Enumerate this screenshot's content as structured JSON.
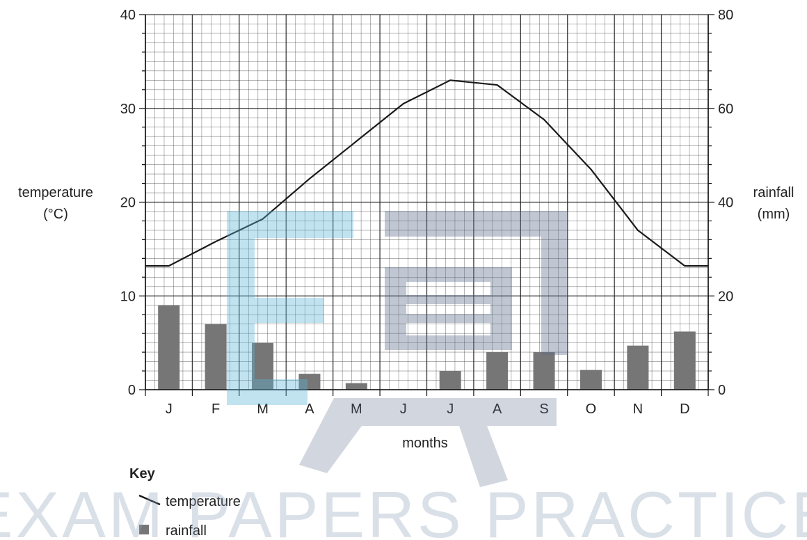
{
  "chart_data": {
    "type": "bar+line",
    "xlabel": "months",
    "categories": [
      "J",
      "F",
      "M",
      "A",
      "M",
      "J",
      "J",
      "A",
      "S",
      "O",
      "N",
      "D"
    ],
    "y_left": {
      "label_line1": "temperature",
      "label_line2": "(°C)",
      "range": [
        0,
        40
      ],
      "ticks": [
        "0",
        "10",
        "20",
        "30",
        "40"
      ]
    },
    "y_right": {
      "label_line1": "rainfall",
      "label_line2": "(mm)",
      "range": [
        0,
        80
      ],
      "ticks": [
        "0",
        "20",
        "40",
        "60",
        "80"
      ]
    },
    "series": [
      {
        "name": "temperature",
        "kind": "line",
        "axis": "left",
        "values": [
          13.2,
          15.8,
          18.2,
          22.5,
          26.5,
          30.5,
          33.0,
          32.5,
          28.8,
          23.5,
          17.0,
          13.2
        ]
      },
      {
        "name": "rainfall",
        "kind": "bar",
        "axis": "right",
        "values": [
          18,
          14,
          10,
          3.4,
          1.4,
          0,
          4,
          8,
          8,
          4.2,
          9.4,
          12.4
        ]
      }
    ],
    "grid": true,
    "legend": {
      "title": "Key",
      "position": "bottom-left",
      "items": [
        "temperature",
        "rainfall"
      ]
    },
    "colors": {
      "bar": "#767676",
      "line": "#1a1a1a",
      "grid": "#222222"
    }
  },
  "watermark": {
    "text": "EXAM PAPERS PRACTICE"
  }
}
